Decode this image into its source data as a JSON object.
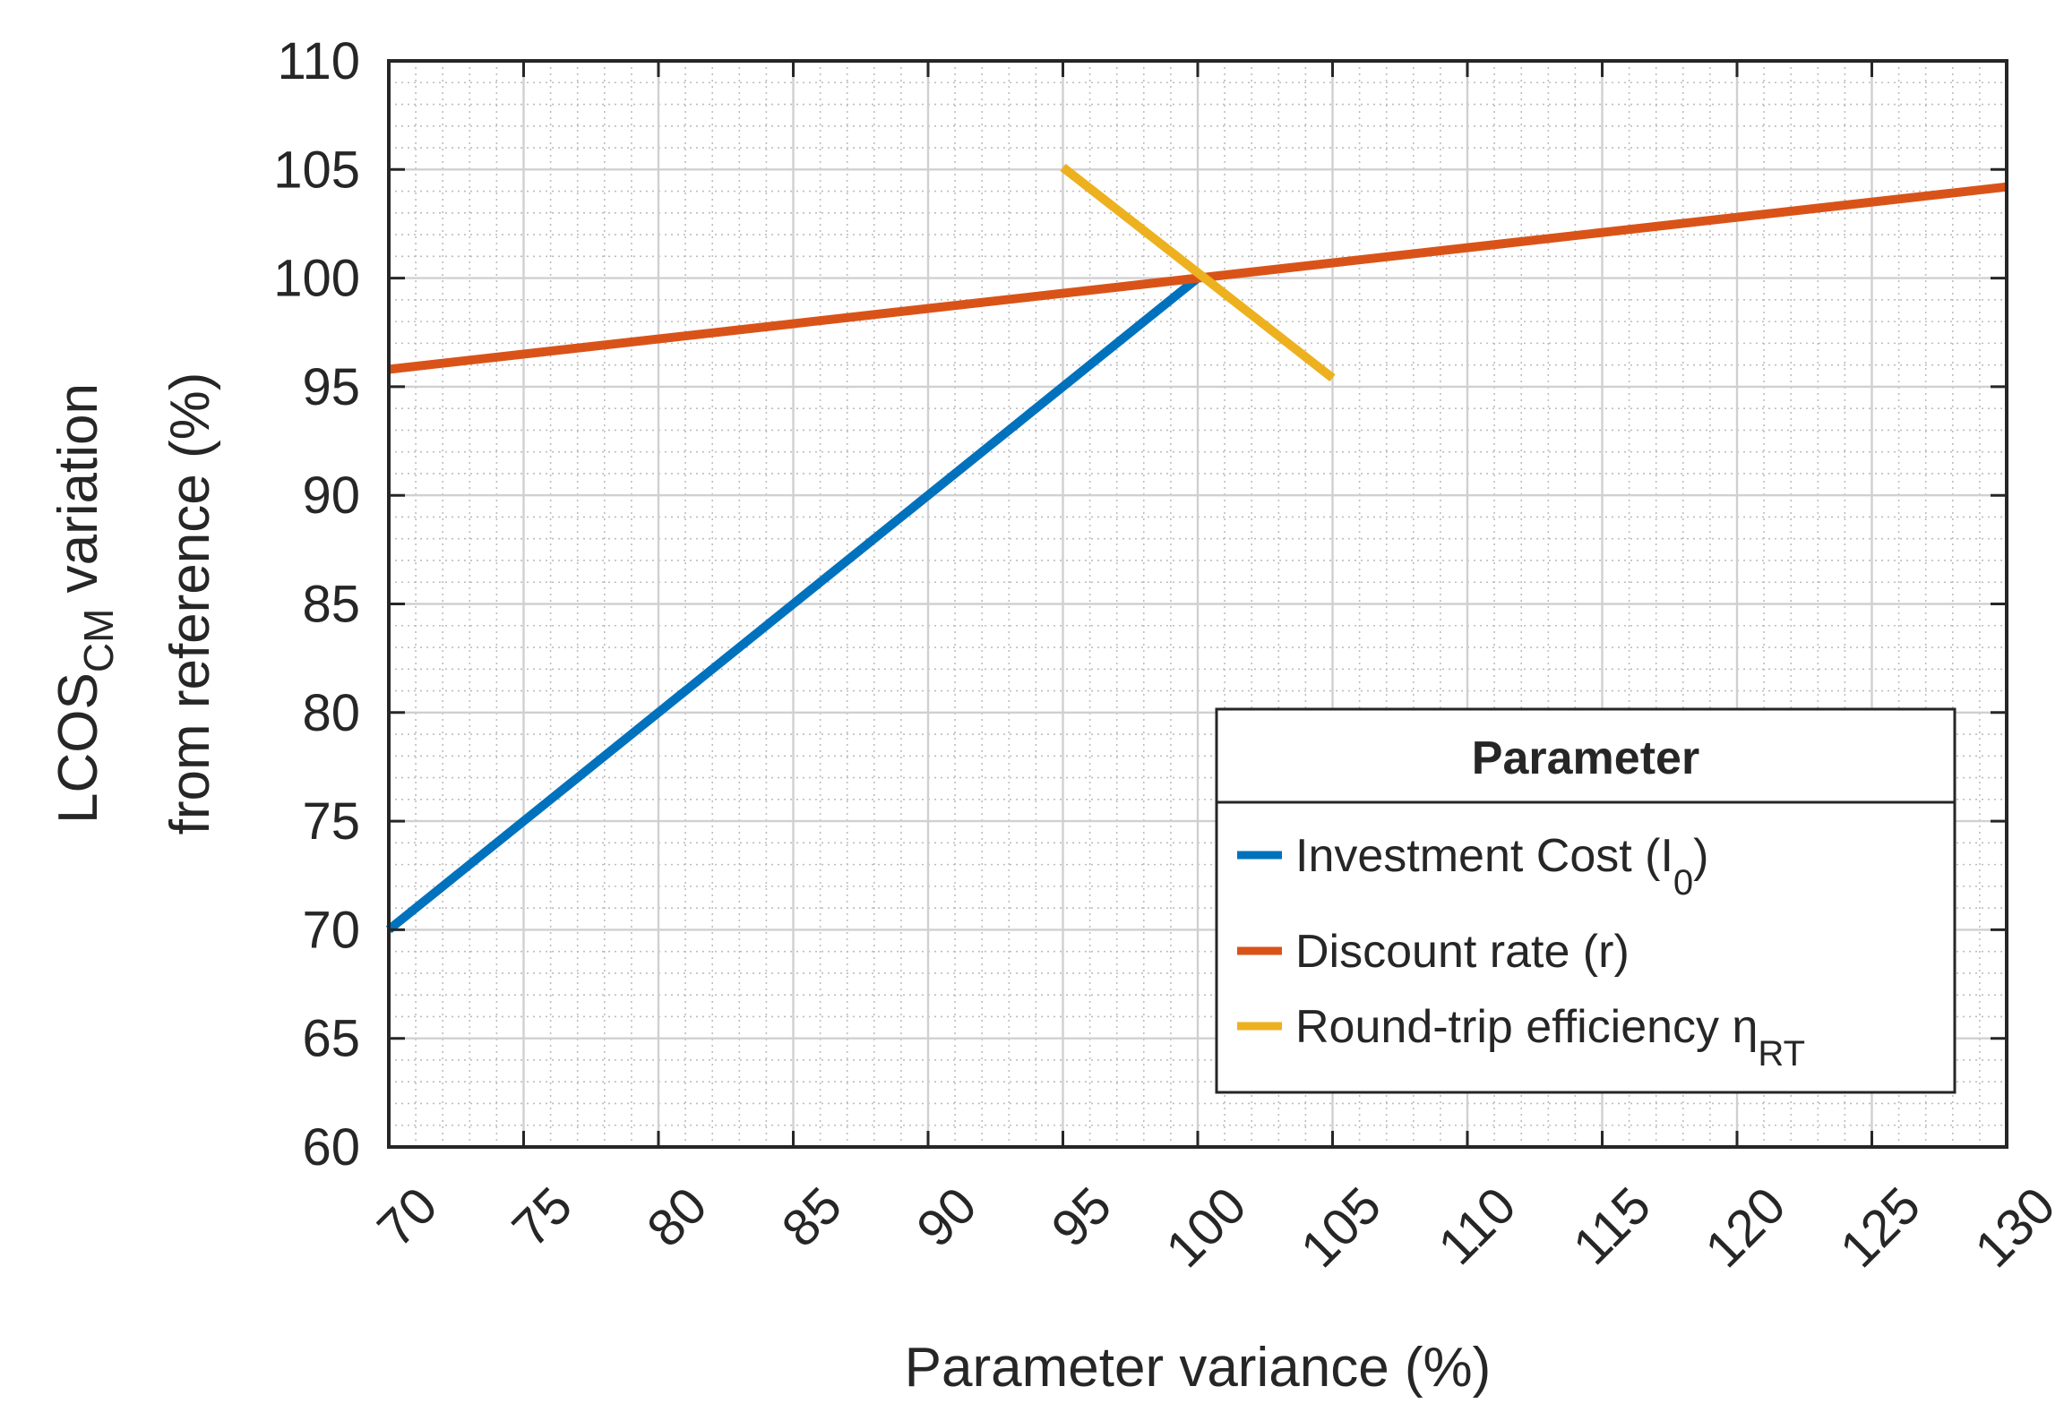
{
  "chart_data": {
    "type": "line",
    "title": "",
    "xlabel": "Parameter variance (%)",
    "ylabel": {
      "line1_prefix": "LCOS",
      "line1_sub": "CM",
      "line1_suffix": " variation",
      "line2": "from reference (%)"
    },
    "xlim": [
      70,
      130
    ],
    "ylim": [
      60,
      110
    ],
    "xticks": [
      "70",
      "75",
      "80",
      "85",
      "90",
      "95",
      "100",
      "105",
      "110",
      "115",
      "120",
      "125",
      "130"
    ],
    "yticks": [
      "60",
      "65",
      "70",
      "75",
      "80",
      "85",
      "90",
      "95",
      "100",
      "105",
      "110"
    ],
    "grid": true,
    "minor_grid": true,
    "legend": {
      "title": "Parameter",
      "location": "lower-right"
    },
    "series": [
      {
        "name": "Investment Cost (I0)",
        "label_main": "Investment Cost (I",
        "label_sub": "0",
        "label_end": ")",
        "color": "#0072BD",
        "x": [
          70,
          100
        ],
        "y": [
          70,
          100
        ]
      },
      {
        "name": "Discount rate (r)",
        "label_main": "Discount rate (r)",
        "label_sub": "",
        "label_end": "",
        "color": "#D95319",
        "x": [
          70,
          130
        ],
        "y": [
          95.8,
          104.2
        ]
      },
      {
        "name": "Round-trip efficiency ηRT",
        "label_main": "Round-trip efficiency η",
        "label_sub": "RT",
        "label_end": "",
        "color": "#EDB120",
        "x": [
          95,
          105
        ],
        "y": [
          105.1,
          95.4
        ]
      }
    ]
  }
}
